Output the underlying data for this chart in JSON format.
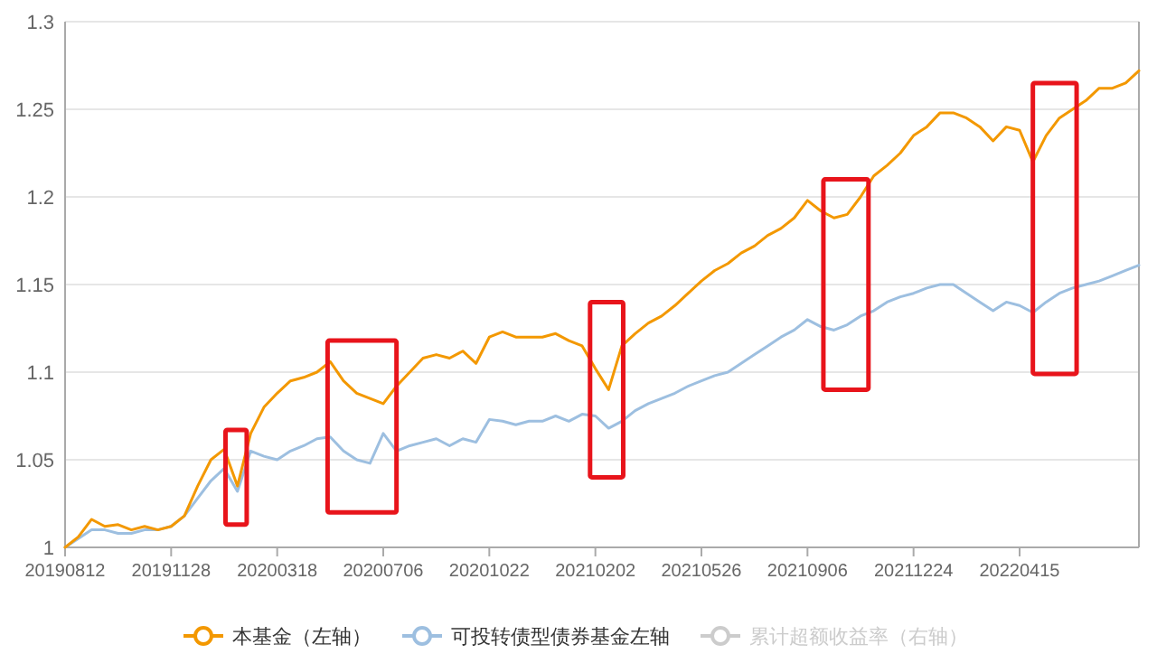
{
  "chart_data": {
    "type": "line",
    "categories": [
      "20190812",
      null,
      null,
      null,
      null,
      null,
      null,
      null,
      "20191128",
      null,
      null,
      null,
      null,
      null,
      null,
      null,
      "20200318",
      null,
      null,
      null,
      null,
      null,
      null,
      null,
      "20200706",
      null,
      null,
      null,
      null,
      null,
      null,
      null,
      "20201022",
      null,
      null,
      null,
      null,
      null,
      null,
      null,
      "20210202",
      null,
      null,
      null,
      null,
      null,
      null,
      null,
      "20210526",
      null,
      null,
      null,
      null,
      null,
      null,
      null,
      "20210906",
      null,
      null,
      null,
      null,
      null,
      null,
      null,
      "20211224",
      null,
      null,
      null,
      null,
      null,
      null,
      null,
      "20220415",
      null,
      null,
      null,
      null,
      null,
      null,
      null,
      null,
      null
    ],
    "series": [
      {
        "name": "本基金（左轴）",
        "color": "#f39800",
        "values": [
          1.0,
          1.006,
          1.016,
          1.012,
          1.013,
          1.01,
          1.012,
          1.01,
          1.012,
          1.018,
          1.035,
          1.05,
          1.056,
          1.035,
          1.065,
          1.08,
          1.088,
          1.095,
          1.097,
          1.1,
          1.106,
          1.095,
          1.088,
          1.085,
          1.082,
          1.092,
          1.1,
          1.108,
          1.11,
          1.108,
          1.112,
          1.105,
          1.12,
          1.123,
          1.12,
          1.12,
          1.12,
          1.122,
          1.118,
          1.115,
          1.102,
          1.09,
          1.115,
          1.122,
          1.128,
          1.132,
          1.138,
          1.145,
          1.152,
          1.158,
          1.162,
          1.168,
          1.172,
          1.178,
          1.182,
          1.188,
          1.198,
          1.192,
          1.188,
          1.19,
          1.2,
          1.212,
          1.218,
          1.225,
          1.235,
          1.24,
          1.248,
          1.248,
          1.245,
          1.24,
          1.232,
          1.24,
          1.238,
          1.22,
          1.235,
          1.245,
          1.25,
          1.255,
          1.262,
          1.262,
          1.265,
          1.272
        ]
      },
      {
        "name": "可投转债型债券基金左轴",
        "color": "#9dbfe0",
        "values": [
          1.0,
          1.005,
          1.01,
          1.01,
          1.008,
          1.008,
          1.01,
          1.01,
          1.012,
          1.018,
          1.028,
          1.038,
          1.045,
          1.032,
          1.055,
          1.052,
          1.05,
          1.055,
          1.058,
          1.062,
          1.063,
          1.055,
          1.05,
          1.048,
          1.065,
          1.055,
          1.058,
          1.06,
          1.062,
          1.058,
          1.062,
          1.06,
          1.073,
          1.072,
          1.07,
          1.072,
          1.072,
          1.075,
          1.072,
          1.076,
          1.075,
          1.068,
          1.072,
          1.078,
          1.082,
          1.085,
          1.088,
          1.092,
          1.095,
          1.098,
          1.1,
          1.105,
          1.11,
          1.115,
          1.12,
          1.124,
          1.13,
          1.126,
          1.124,
          1.127,
          1.132,
          1.135,
          1.14,
          1.143,
          1.145,
          1.148,
          1.15,
          1.15,
          1.145,
          1.14,
          1.135,
          1.14,
          1.138,
          1.134,
          1.14,
          1.145,
          1.148,
          1.15,
          1.152,
          1.155,
          1.158,
          1.161
        ]
      },
      {
        "name": "累计超额收益率（右轴）",
        "color": "#cccccc",
        "values": [
          null,
          null,
          null,
          null,
          null,
          null,
          null,
          null,
          null,
          null,
          null,
          null,
          null,
          null,
          null,
          null,
          null,
          null,
          null,
          null,
          null,
          null,
          null,
          null,
          null,
          null,
          null,
          null,
          null,
          null,
          null,
          null,
          null,
          null,
          null,
          null,
          null,
          null,
          null,
          null,
          null,
          null,
          null,
          null,
          null,
          null,
          null,
          null,
          null,
          null,
          null,
          null,
          null,
          null,
          null,
          null,
          null,
          null,
          null,
          null,
          null,
          null,
          null,
          null,
          null,
          null,
          null,
          null,
          null,
          null,
          null,
          null,
          null,
          null,
          null,
          null,
          null,
          null,
          null,
          null,
          null,
          null
        ]
      }
    ],
    "ylim": [
      1,
      1.3
    ],
    "yticks": [
      1,
      1.05,
      1.1,
      1.15,
      1.2,
      1.25,
      1.3
    ],
    "grid": "y",
    "legend": "bottom"
  }
}
